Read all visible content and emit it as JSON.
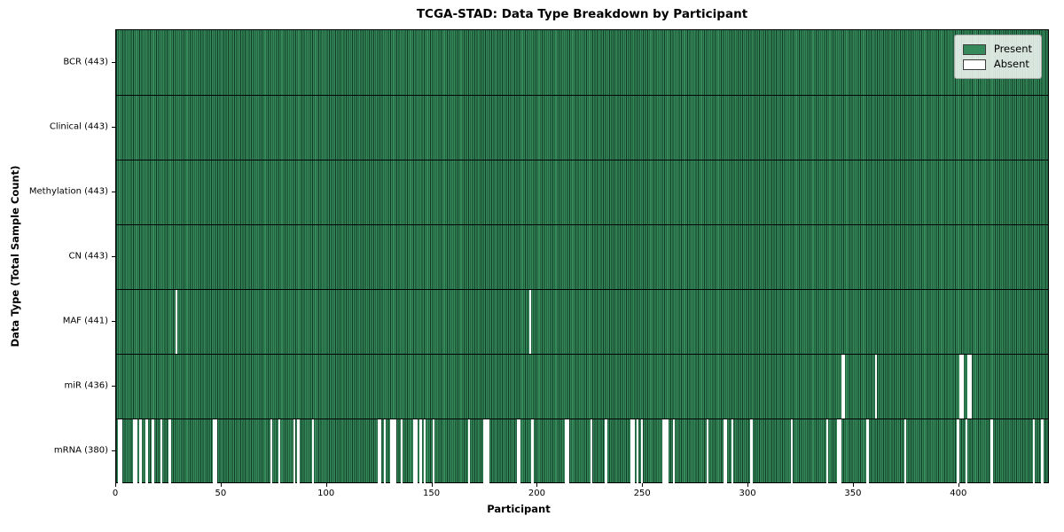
{
  "chart_data": {
    "type": "heatmap",
    "title": "TCGA-STAD: Data Type Breakdown by Participant",
    "xlabel": "Participant",
    "ylabel": "Data Type (Total Sample Count)",
    "n_participants": 443,
    "x_ticks": [
      0,
      50,
      100,
      150,
      200,
      250,
      300,
      350,
      400
    ],
    "present_color": "#35895b",
    "absent_color": "#ffffff",
    "cell_line_color": "#0f3a23",
    "legend": [
      {
        "label": "Present",
        "color": "#35895b"
      },
      {
        "label": "Absent",
        "color": "#ffffff"
      }
    ],
    "rows": [
      {
        "label": "BCR (443)",
        "data_type": "BCR",
        "present_count": 443,
        "absent_participants": []
      },
      {
        "label": "Clinical (443)",
        "data_type": "Clinical",
        "present_count": 443,
        "absent_participants": []
      },
      {
        "label": "Methylation (443)",
        "data_type": "Methylation",
        "present_count": 443,
        "absent_participants": []
      },
      {
        "label": "CN (443)",
        "data_type": "CN",
        "present_count": 443,
        "absent_participants": []
      },
      {
        "label": "MAF (441)",
        "data_type": "MAF",
        "present_count": 441,
        "absent_participants": [
          28,
          196
        ]
      },
      {
        "label": "miR (436)",
        "data_type": "miR",
        "present_count": 436,
        "absent_participants": [
          344,
          345,
          360,
          400,
          401,
          404,
          405
        ]
      },
      {
        "label": "mRNA (380)",
        "data_type": "mRNA",
        "present_count": 380,
        "absent_participants": [
          1,
          2,
          8,
          9,
          11,
          14,
          17,
          21,
          25,
          46,
          47,
          73,
          77,
          84,
          86,
          93,
          124,
          125,
          127,
          130,
          131,
          132,
          135,
          141,
          142,
          144,
          146,
          150,
          167,
          174,
          175,
          176,
          190,
          191,
          197,
          213,
          214,
          225,
          232,
          244,
          245,
          247,
          249,
          259,
          260,
          261,
          264,
          280,
          288,
          289,
          292,
          301,
          320,
          337,
          342,
          343,
          356,
          374,
          399,
          403,
          415,
          435,
          439
        ]
      }
    ]
  }
}
